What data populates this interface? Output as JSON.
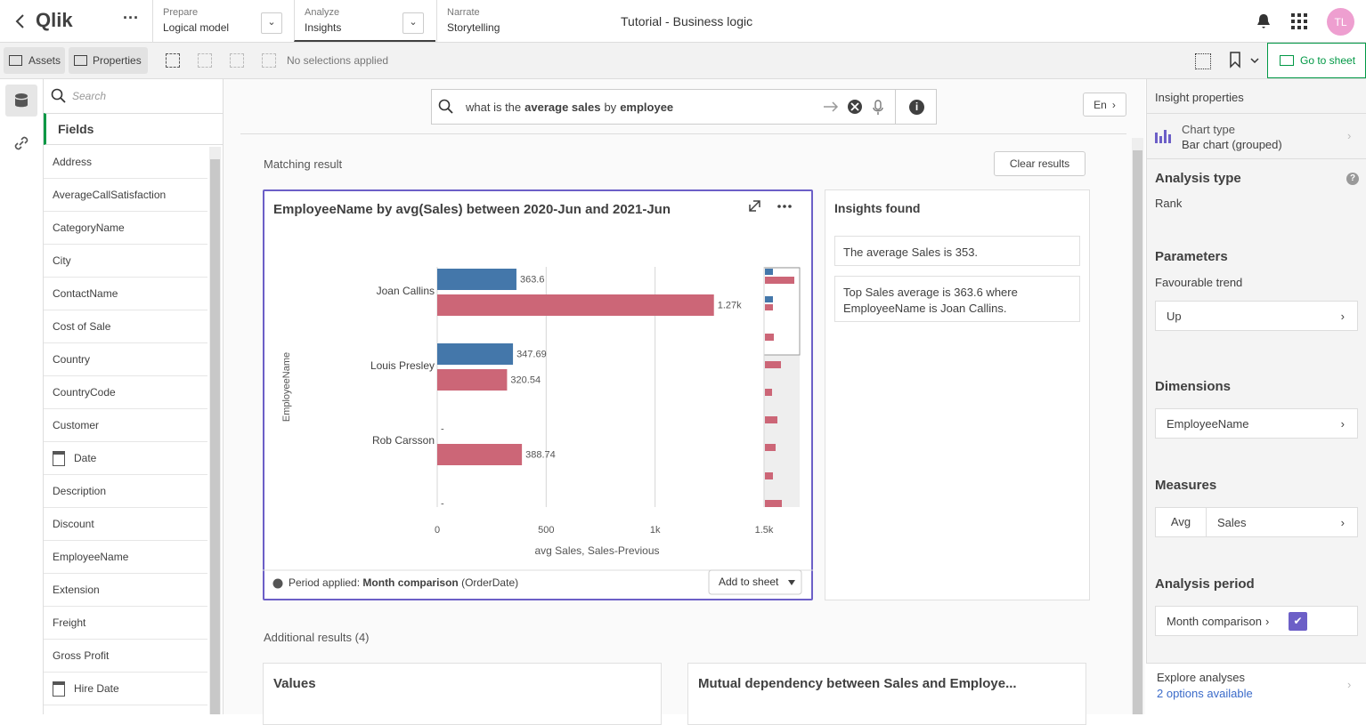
{
  "topbar": {
    "logo": "Qlik",
    "tabs": [
      {
        "label": "Prepare",
        "value": "Logical model"
      },
      {
        "label": "Analyze",
        "value": "Insights"
      },
      {
        "label": "Narrate",
        "value": "Storytelling"
      }
    ],
    "app_title": "Tutorial - Business logic",
    "avatar": "TL"
  },
  "toolbar": {
    "assets": "Assets",
    "properties": "Properties",
    "selections": "No selections applied",
    "go_to_sheet": "Go to sheet"
  },
  "fields_panel": {
    "search_placeholder": "Search",
    "heading": "Fields",
    "fields": [
      {
        "name": "Address"
      },
      {
        "name": "AverageCallSatisfaction"
      },
      {
        "name": "CategoryName"
      },
      {
        "name": "City"
      },
      {
        "name": "ContactName"
      },
      {
        "name": "Cost of Sale"
      },
      {
        "name": "Country"
      },
      {
        "name": "CountryCode"
      },
      {
        "name": "Customer"
      },
      {
        "name": "Date",
        "icon": "calendar"
      },
      {
        "name": "Description"
      },
      {
        "name": "Discount"
      },
      {
        "name": "EmployeeName"
      },
      {
        "name": "Extension"
      },
      {
        "name": "Freight"
      },
      {
        "name": "Gross Profit"
      },
      {
        "name": "Hire Date",
        "icon": "calendar"
      }
    ]
  },
  "search": {
    "query": [
      {
        "text": "what is the",
        "bold": false
      },
      {
        "text": "average sales",
        "bold": true
      },
      {
        "text": "by",
        "bold": false
      },
      {
        "text": "employee",
        "bold": true
      }
    ],
    "language": "En"
  },
  "results": {
    "heading": "Matching result",
    "clear": "Clear results",
    "period_label": "Period applied:",
    "period_value": "Month comparison",
    "period_field": "(OrderDate)",
    "add_to_sheet": "Add to sheet",
    "insights_heading": "Insights found",
    "insights": [
      "The average Sales is 353.",
      "Top Sales average is 363.6 where EmployeeName is Joan Callins."
    ],
    "additional_heading": "Additional results (4)",
    "additional_cards": [
      "Values",
      "Mutual dependency between Sales and Employe..."
    ]
  },
  "chart_data": {
    "type": "hbar",
    "title": "EmployeeName by avg(Sales) between 2020-Jun and 2021-Jun",
    "categories": [
      "Joan Callins",
      "Louis Presley",
      "Rob Carsson",
      null
    ],
    "series": [
      {
        "color": "#4477aa",
        "values": [
          363.6,
          347.69,
          null,
          null
        ],
        "value_labels": [
          "363.6",
          "347.69",
          "-",
          "-"
        ]
      },
      {
        "color": "#cc6677",
        "values": [
          1270,
          320.54,
          388.74,
          null
        ],
        "value_labels": [
          "1.27k",
          "320.54",
          "388.74",
          null
        ]
      }
    ],
    "xlim": [
      0,
      1500
    ],
    "xticks": [
      0,
      500,
      {
        "value": 1000,
        "label": "1k"
      },
      {
        "value": 1500,
        "label": "1.5k"
      }
    ],
    "x_label": "avg Sales, Sales-Previous",
    "y_label": "EmployeeName",
    "grid": true
  },
  "properties": {
    "heading": "Insight properties",
    "chart_type_label": "Chart type",
    "chart_type": "Bar chart (grouped)",
    "analysis_type_label": "Analysis type",
    "analysis_type": "Rank",
    "parameters_label": "Parameters",
    "trend_label": "Favourable trend",
    "trend": "Up",
    "dimensions_label": "Dimensions",
    "dimension": "EmployeeName",
    "measures_label": "Measures",
    "measure_agg": "Avg",
    "measure": "Sales",
    "period_label": "Analysis period",
    "period": "Month comparison",
    "explore_label": "Explore analyses",
    "explore_options": "2 options available"
  }
}
